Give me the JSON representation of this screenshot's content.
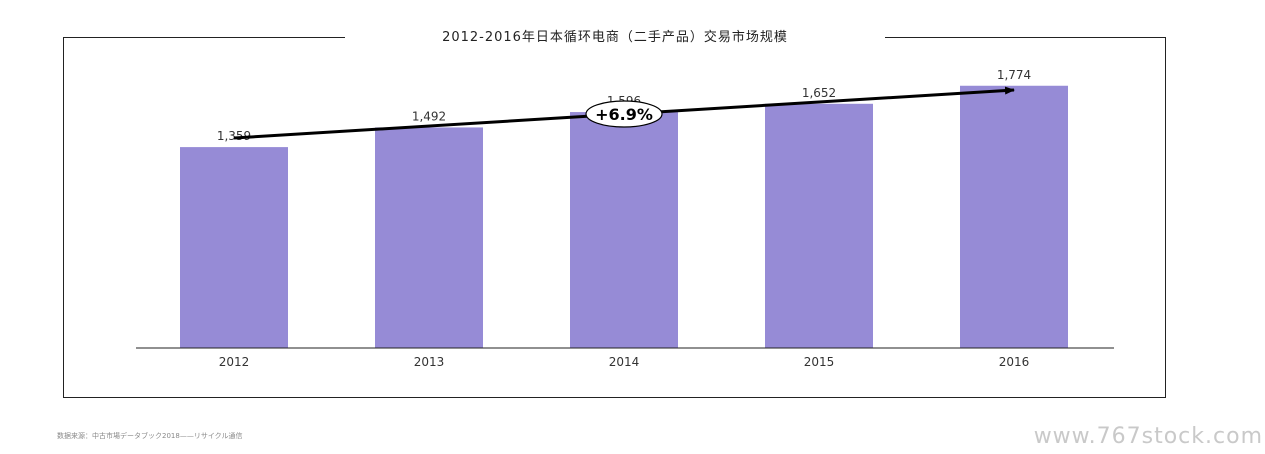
{
  "chart_data": {
    "type": "bar",
    "title": "2012-2016年日本循环电商（二手产品）交易市场规模",
    "categories": [
      "2012",
      "2013",
      "2014",
      "2015",
      "2016"
    ],
    "values": [
      1359,
      1492,
      1596,
      1652,
      1774
    ],
    "value_labels": [
      "1,359",
      "1,492",
      "1,596",
      "1,652",
      "1,774"
    ],
    "ylim": [
      0,
      2300
    ],
    "bar_color": "#968bd6",
    "growth_label": "+6.9%"
  },
  "footer": {
    "source": "数据来源：中古市場データブック2018——リサイクル通信",
    "watermark": "www.767stock.com"
  }
}
